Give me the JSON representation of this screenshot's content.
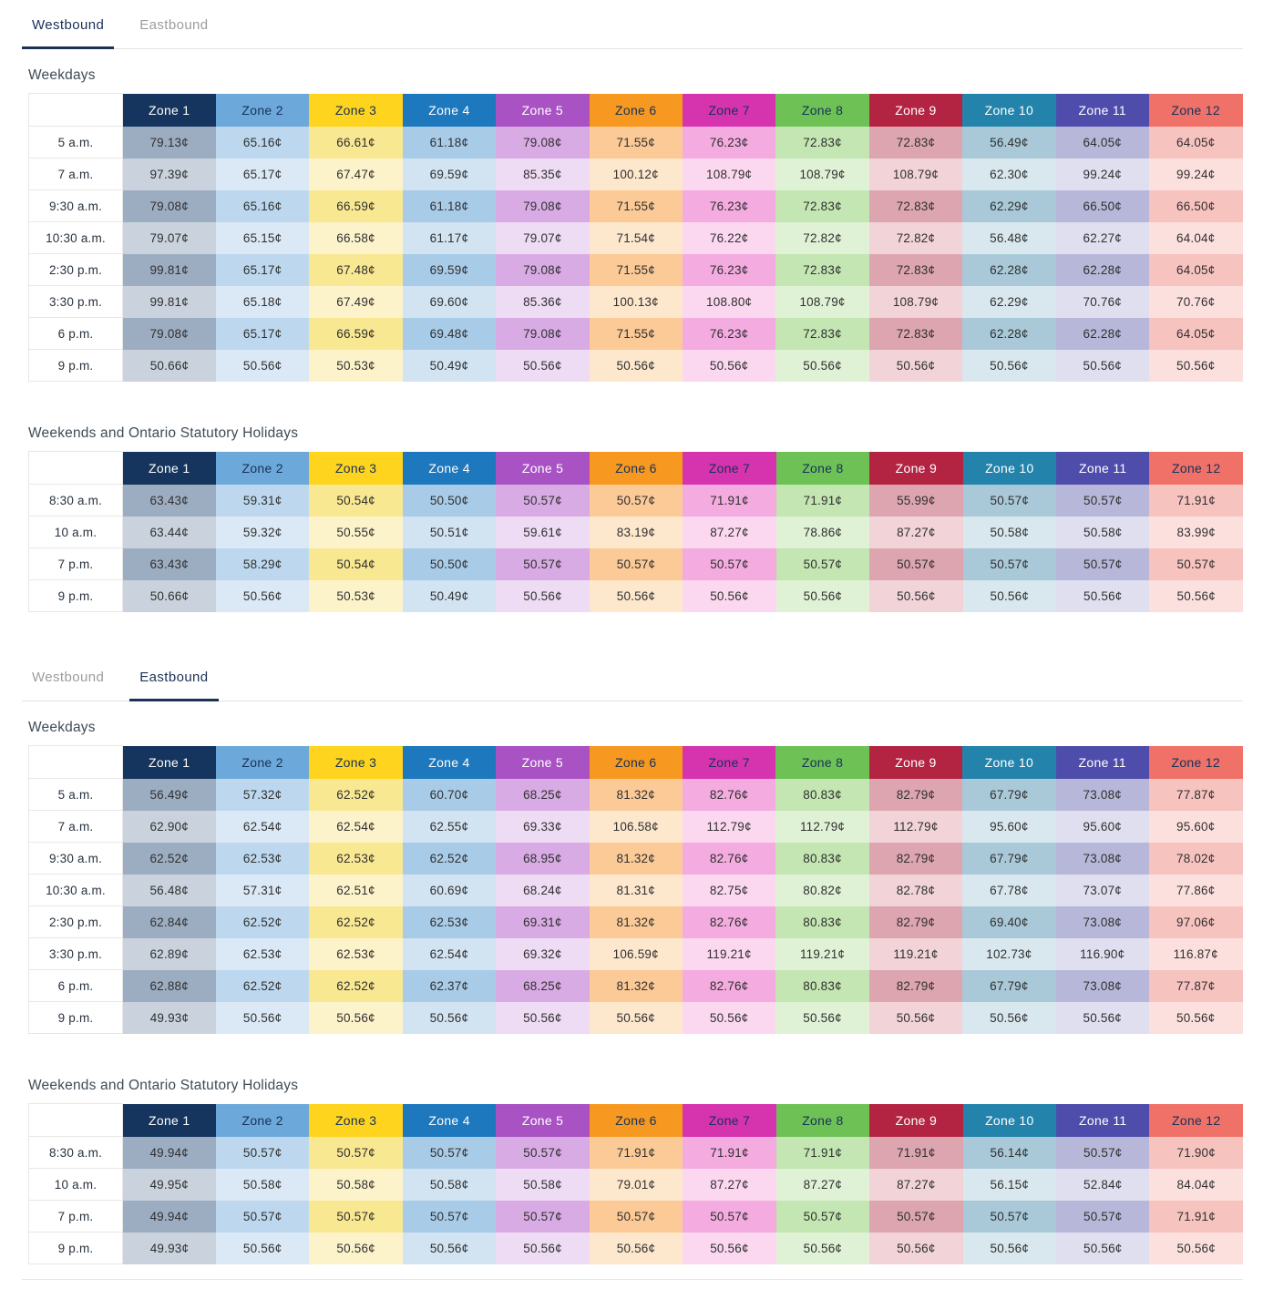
{
  "zones": [
    {
      "label": "Zone 1",
      "header_bg": "#15355e",
      "header_text": "#ffffff",
      "tint_dark": "#9cadc2",
      "tint_light": "#c9d2dd"
    },
    {
      "label": "Zone 2",
      "header_bg": "#6ca9da",
      "header_text": "#16325a",
      "tint_dark": "#bdd8ee",
      "tint_light": "#dbe9f6"
    },
    {
      "label": "Zone 3",
      "header_bg": "#ffd41f",
      "header_text": "#16325a",
      "tint_dark": "#f9e892",
      "tint_light": "#fdf3cb"
    },
    {
      "label": "Zone 4",
      "header_bg": "#1d78bd",
      "header_text": "#ffffff",
      "tint_dark": "#a8cbe8",
      "tint_light": "#d2e3f2"
    },
    {
      "label": "Zone 5",
      "header_bg": "#a852c4",
      "header_text": "#ffffff",
      "tint_dark": "#d9abe4",
      "tint_light": "#eedbf4"
    },
    {
      "label": "Zone 6",
      "header_bg": "#f79820",
      "header_text": "#16325a",
      "tint_dark": "#fbca96",
      "tint_light": "#fde7cd"
    },
    {
      "label": "Zone 7",
      "header_bg": "#d633af",
      "header_text": "#16325a",
      "tint_dark": "#f4abdf",
      "tint_light": "#fbd8f0"
    },
    {
      "label": "Zone 8",
      "header_bg": "#6ec255",
      "header_text": "#16325a",
      "tint_dark": "#c4e6b2",
      "tint_light": "#dff2d6"
    },
    {
      "label": "Zone 9",
      "header_bg": "#b32443",
      "header_text": "#ffffff",
      "tint_dark": "#dca5af",
      "tint_light": "#f1d3d8"
    },
    {
      "label": "Zone 10",
      "header_bg": "#2383ab",
      "header_text": "#ffffff",
      "tint_dark": "#a9c9d8",
      "tint_light": "#d9e8ee"
    },
    {
      "label": "Zone 11",
      "header_bg": "#4f4dab",
      "header_text": "#ffffff",
      "tint_dark": "#b7b7d9",
      "tint_light": "#dfdff0"
    },
    {
      "label": "Zone 12",
      "header_bg": "#f07167",
      "header_text": "#16325a",
      "tint_dark": "#f7c3bf",
      "tint_light": "#fce0de"
    }
  ],
  "sections": [
    {
      "id": "westbound",
      "tabs": [
        {
          "label": "Westbound",
          "active": true
        },
        {
          "label": "Eastbound",
          "active": false
        }
      ],
      "tables": [
        {
          "title": "Weekdays",
          "rows": [
            {
              "time": "5 a.m.",
              "values": [
                "79.13¢",
                "65.16¢",
                "66.61¢",
                "61.18¢",
                "79.08¢",
                "71.55¢",
                "76.23¢",
                "72.83¢",
                "72.83¢",
                "56.49¢",
                "64.05¢",
                "64.05¢"
              ]
            },
            {
              "time": "7 a.m.",
              "values": [
                "97.39¢",
                "65.17¢",
                "67.47¢",
                "69.59¢",
                "85.35¢",
                "100.12¢",
                "108.79¢",
                "108.79¢",
                "108.79¢",
                "62.30¢",
                "99.24¢",
                "99.24¢"
              ]
            },
            {
              "time": "9:30 a.m.",
              "values": [
                "79.08¢",
                "65.16¢",
                "66.59¢",
                "61.18¢",
                "79.08¢",
                "71.55¢",
                "76.23¢",
                "72.83¢",
                "72.83¢",
                "62.29¢",
                "66.50¢",
                "66.50¢"
              ]
            },
            {
              "time": "10:30 a.m.",
              "values": [
                "79.07¢",
                "65.15¢",
                "66.58¢",
                "61.17¢",
                "79.07¢",
                "71.54¢",
                "76.22¢",
                "72.82¢",
                "72.82¢",
                "56.48¢",
                "62.27¢",
                "64.04¢"
              ]
            },
            {
              "time": "2:30 p.m.",
              "values": [
                "99.81¢",
                "65.17¢",
                "67.48¢",
                "69.59¢",
                "79.08¢",
                "71.55¢",
                "76.23¢",
                "72.83¢",
                "72.83¢",
                "62.28¢",
                "62.28¢",
                "64.05¢"
              ]
            },
            {
              "time": "3:30 p.m.",
              "values": [
                "99.81¢",
                "65.18¢",
                "67.49¢",
                "69.60¢",
                "85.36¢",
                "100.13¢",
                "108.80¢",
                "108.79¢",
                "108.79¢",
                "62.29¢",
                "70.76¢",
                "70.76¢"
              ]
            },
            {
              "time": "6 p.m.",
              "values": [
                "79.08¢",
                "65.17¢",
                "66.59¢",
                "69.48¢",
                "79.08¢",
                "71.55¢",
                "76.23¢",
                "72.83¢",
                "72.83¢",
                "62.28¢",
                "62.28¢",
                "64.05¢"
              ]
            },
            {
              "time": "9 p.m.",
              "values": [
                "50.66¢",
                "50.56¢",
                "50.53¢",
                "50.49¢",
                "50.56¢",
                "50.56¢",
                "50.56¢",
                "50.56¢",
                "50.56¢",
                "50.56¢",
                "50.56¢",
                "50.56¢"
              ]
            }
          ]
        },
        {
          "title": "Weekends and Ontario Statutory Holidays",
          "rows": [
            {
              "time": "8:30 a.m.",
              "values": [
                "63.43¢",
                "59.31¢",
                "50.54¢",
                "50.50¢",
                "50.57¢",
                "50.57¢",
                "71.91¢",
                "71.91¢",
                "55.99¢",
                "50.57¢",
                "50.57¢",
                "71.91¢"
              ]
            },
            {
              "time": "10 a.m.",
              "values": [
                "63.44¢",
                "59.32¢",
                "50.55¢",
                "50.51¢",
                "59.61¢",
                "83.19¢",
                "87.27¢",
                "78.86¢",
                "87.27¢",
                "50.58¢",
                "50.58¢",
                "83.99¢"
              ]
            },
            {
              "time": "7 p.m.",
              "values": [
                "63.43¢",
                "58.29¢",
                "50.54¢",
                "50.50¢",
                "50.57¢",
                "50.57¢",
                "50.57¢",
                "50.57¢",
                "50.57¢",
                "50.57¢",
                "50.57¢",
                "50.57¢"
              ]
            },
            {
              "time": "9 p.m.",
              "values": [
                "50.66¢",
                "50.56¢",
                "50.53¢",
                "50.49¢",
                "50.56¢",
                "50.56¢",
                "50.56¢",
                "50.56¢",
                "50.56¢",
                "50.56¢",
                "50.56¢",
                "50.56¢"
              ]
            }
          ]
        }
      ]
    },
    {
      "id": "eastbound",
      "tabs": [
        {
          "label": "Westbound",
          "active": false
        },
        {
          "label": "Eastbound",
          "active": true
        }
      ],
      "tables": [
        {
          "title": "Weekdays",
          "rows": [
            {
              "time": "5 a.m.",
              "values": [
                "56.49¢",
                "57.32¢",
                "62.52¢",
                "60.70¢",
                "68.25¢",
                "81.32¢",
                "82.76¢",
                "80.83¢",
                "82.79¢",
                "67.79¢",
                "73.08¢",
                "77.87¢"
              ]
            },
            {
              "time": "7 a.m.",
              "values": [
                "62.90¢",
                "62.54¢",
                "62.54¢",
                "62.55¢",
                "69.33¢",
                "106.58¢",
                "112.79¢",
                "112.79¢",
                "112.79¢",
                "95.60¢",
                "95.60¢",
                "95.60¢"
              ]
            },
            {
              "time": "9:30 a.m.",
              "values": [
                "62.52¢",
                "62.53¢",
                "62.53¢",
                "62.52¢",
                "68.95¢",
                "81.32¢",
                "82.76¢",
                "80.83¢",
                "82.79¢",
                "67.79¢",
                "73.08¢",
                "78.02¢"
              ]
            },
            {
              "time": "10:30 a.m.",
              "values": [
                "56.48¢",
                "57.31¢",
                "62.51¢",
                "60.69¢",
                "68.24¢",
                "81.31¢",
                "82.75¢",
                "80.82¢",
                "82.78¢",
                "67.78¢",
                "73.07¢",
                "77.86¢"
              ]
            },
            {
              "time": "2:30 p.m.",
              "values": [
                "62.84¢",
                "62.52¢",
                "62.52¢",
                "62.53¢",
                "69.31¢",
                "81.32¢",
                "82.76¢",
                "80.83¢",
                "82.79¢",
                "69.40¢",
                "73.08¢",
                "97.06¢"
              ]
            },
            {
              "time": "3:30 p.m.",
              "values": [
                "62.89¢",
                "62.53¢",
                "62.53¢",
                "62.54¢",
                "69.32¢",
                "106.59¢",
                "119.21¢",
                "119.21¢",
                "119.21¢",
                "102.73¢",
                "116.90¢",
                "116.87¢"
              ]
            },
            {
              "time": "6 p.m.",
              "values": [
                "62.88¢",
                "62.52¢",
                "62.52¢",
                "62.37¢",
                "68.25¢",
                "81.32¢",
                "82.76¢",
                "80.83¢",
                "82.79¢",
                "67.79¢",
                "73.08¢",
                "77.87¢"
              ]
            },
            {
              "time": "9 p.m.",
              "values": [
                "49.93¢",
                "50.56¢",
                "50.56¢",
                "50.56¢",
                "50.56¢",
                "50.56¢",
                "50.56¢",
                "50.56¢",
                "50.56¢",
                "50.56¢",
                "50.56¢",
                "50.56¢"
              ]
            }
          ]
        },
        {
          "title": "Weekends and Ontario Statutory Holidays",
          "rows": [
            {
              "time": "8:30 a.m.",
              "values": [
                "49.94¢",
                "50.57¢",
                "50.57¢",
                "50.57¢",
                "50.57¢",
                "71.91¢",
                "71.91¢",
                "71.91¢",
                "71.91¢",
                "56.14¢",
                "50.57¢",
                "71.90¢"
              ]
            },
            {
              "time": "10 a.m.",
              "values": [
                "49.95¢",
                "50.58¢",
                "50.58¢",
                "50.58¢",
                "50.58¢",
                "79.01¢",
                "87.27¢",
                "87.27¢",
                "87.27¢",
                "56.15¢",
                "52.84¢",
                "84.04¢"
              ]
            },
            {
              "time": "7 p.m.",
              "values": [
                "49.94¢",
                "50.57¢",
                "50.57¢",
                "50.57¢",
                "50.57¢",
                "50.57¢",
                "50.57¢",
                "50.57¢",
                "50.57¢",
                "50.57¢",
                "50.57¢",
                "71.91¢"
              ]
            },
            {
              "time": "9 p.m.",
              "values": [
                "49.93¢",
                "50.56¢",
                "50.56¢",
                "50.56¢",
                "50.56¢",
                "50.56¢",
                "50.56¢",
                "50.56¢",
                "50.56¢",
                "50.56¢",
                "50.56¢",
                "50.56¢"
              ]
            }
          ]
        }
      ]
    }
  ]
}
